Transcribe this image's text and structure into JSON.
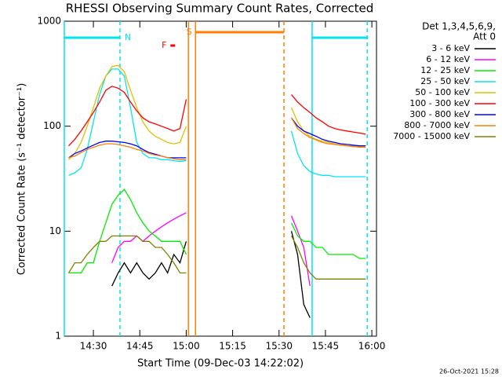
{
  "chart_data": {
    "type": "line",
    "title": "RHESSI Observing Summary Count Rates, Corrected",
    "x_label": "Start Time (09-Dec-03 14:22:02)",
    "y_label": "Corrected Count Rate (s⁻¹ detector⁻¹)",
    "legend_title": [
      "Det 1,3,4,5,6,9,",
      "Att 0"
    ],
    "footer": "26-Oct-2021 15:28",
    "log_y": true,
    "legend": "right",
    "xlim": [
      860.6,
      961.5
    ],
    "ylim": [
      1,
      1000
    ],
    "xticks": [
      {
        "value": 870,
        "label": "14:30"
      },
      {
        "value": 885,
        "label": "14:45"
      },
      {
        "value": 900,
        "label": "15:00"
      },
      {
        "value": 915,
        "label": "15:15"
      },
      {
        "value": 930,
        "label": "15:30"
      },
      {
        "value": 945,
        "label": "15:45"
      },
      {
        "value": 960,
        "label": "16:00"
      }
    ],
    "yticks": [
      1,
      10,
      100,
      1000
    ],
    "x": [
      862,
      864,
      866,
      868,
      870,
      872,
      874,
      876,
      878,
      880,
      882,
      884,
      886,
      888,
      890,
      892,
      894,
      896,
      898,
      900,
      902,
      904,
      906,
      908,
      910,
      912,
      914,
      916,
      918,
      920,
      922,
      924,
      926,
      928,
      930,
      932,
      934,
      936,
      938,
      940,
      942,
      944,
      946,
      948,
      950,
      952,
      954,
      956,
      958
    ],
    "series": [
      {
        "name": "3 - 6 keV",
        "color": "#000000",
        "values": [
          null,
          null,
          null,
          null,
          null,
          null,
          null,
          3,
          4,
          5,
          4,
          5,
          4,
          3.5,
          4,
          5,
          4,
          6,
          5,
          8,
          null,
          null,
          null,
          null,
          null,
          null,
          null,
          null,
          null,
          null,
          null,
          null,
          null,
          null,
          null,
          null,
          10,
          6,
          2,
          1.5,
          null,
          null,
          null,
          null,
          null,
          null,
          null,
          null,
          null
        ]
      },
      {
        "name": "6 - 12 keV",
        "color": "#ff00ff",
        "values": [
          null,
          null,
          null,
          null,
          null,
          null,
          null,
          5,
          7,
          8,
          8,
          9,
          8,
          9,
          10,
          11,
          12,
          13,
          14,
          15,
          null,
          null,
          null,
          null,
          null,
          null,
          null,
          null,
          null,
          null,
          null,
          null,
          null,
          null,
          null,
          null,
          14,
          10,
          7,
          3,
          null,
          null,
          null,
          null,
          null,
          null,
          null,
          null,
          null
        ]
      },
      {
        "name": "12 - 25 keV",
        "color": "#00ee00",
        "values": [
          4,
          4,
          4,
          5,
          5,
          8,
          12,
          18,
          22,
          25,
          20,
          15,
          12,
          10,
          9,
          8,
          8,
          8,
          8,
          6,
          null,
          null,
          null,
          null,
          null,
          null,
          null,
          null,
          null,
          null,
          null,
          null,
          null,
          null,
          null,
          null,
          12,
          9,
          8,
          8,
          7,
          7,
          6,
          6,
          6,
          6,
          6,
          5.5,
          5.5
        ]
      },
      {
        "name": "25 - 50 keV",
        "color": "#00e5ee",
        "values": [
          34,
          36,
          40,
          60,
          110,
          200,
          300,
          350,
          350,
          300,
          150,
          70,
          55,
          50,
          50,
          48,
          48,
          47,
          46,
          47,
          null,
          null,
          null,
          null,
          null,
          null,
          null,
          null,
          null,
          null,
          null,
          null,
          null,
          null,
          null,
          null,
          90,
          55,
          42,
          37,
          35,
          34,
          34,
          33,
          33,
          33,
          33,
          33,
          33
        ]
      },
      {
        "name": "50 - 100 keV",
        "color": "#e0c000",
        "values": [
          48,
          55,
          70,
          100,
          150,
          230,
          300,
          370,
          380,
          330,
          220,
          150,
          110,
          90,
          80,
          75,
          70,
          68,
          70,
          100,
          null,
          null,
          null,
          null,
          null,
          null,
          null,
          null,
          null,
          null,
          null,
          null,
          null,
          null,
          null,
          null,
          150,
          110,
          90,
          80,
          75,
          72,
          70,
          68,
          66,
          65,
          65,
          64,
          63
        ]
      },
      {
        "name": "100 - 300 keV",
        "color": "#ff0000",
        "values": [
          65,
          75,
          90,
          110,
          135,
          170,
          220,
          240,
          230,
          210,
          170,
          140,
          120,
          110,
          105,
          100,
          95,
          90,
          95,
          180,
          null,
          null,
          null,
          null,
          null,
          null,
          null,
          null,
          null,
          null,
          null,
          null,
          null,
          null,
          null,
          null,
          200,
          170,
          150,
          135,
          120,
          110,
          100,
          95,
          92,
          90,
          88,
          86,
          84
        ]
      },
      {
        "name": "300 - 800 keV",
        "color": "#0000ff",
        "values": [
          50,
          55,
          58,
          62,
          66,
          70,
          72,
          72,
          71,
          70,
          68,
          65,
          60,
          56,
          54,
          52,
          50,
          50,
          50,
          50,
          null,
          null,
          null,
          null,
          null,
          null,
          null,
          null,
          null,
          null,
          null,
          null,
          null,
          null,
          null,
          null,
          120,
          100,
          90,
          85,
          80,
          75,
          72,
          70,
          68,
          67,
          66,
          65,
          65
        ]
      },
      {
        "name": "800 - 7000 keV",
        "color": "#ff8000",
        "values": [
          50,
          52,
          56,
          60,
          63,
          66,
          68,
          68,
          67,
          65,
          63,
          60,
          58,
          55,
          53,
          52,
          50,
          49,
          48,
          48,
          null,
          null,
          null,
          null,
          null,
          null,
          null,
          null,
          null,
          null,
          null,
          null,
          null,
          null,
          null,
          null,
          120,
          95,
          85,
          78,
          74,
          70,
          68,
          67,
          66,
          65,
          64,
          63,
          63
        ]
      },
      {
        "name": "7000 - 15000 keV",
        "color": "#808000",
        "values": [
          4,
          5,
          5,
          6,
          7,
          8,
          8,
          9,
          9,
          9,
          9,
          9,
          8,
          8,
          7,
          7,
          6,
          5,
          4,
          4,
          null,
          null,
          null,
          null,
          null,
          null,
          null,
          null,
          null,
          null,
          null,
          null,
          null,
          null,
          null,
          null,
          9,
          7,
          5,
          4,
          3.5,
          3.5,
          3.5,
          3.5,
          3.5,
          3.5,
          3.5,
          3.5,
          3.5
        ]
      }
    ],
    "vlines": [
      {
        "x": 860.6,
        "color": "#00e5ee",
        "dashed": false
      },
      {
        "x": 878.6,
        "color": "#00e5ee",
        "dashed": true
      },
      {
        "x": 940.7,
        "color": "#00e5ee",
        "dashed": false
      },
      {
        "x": 958.5,
        "color": "#00e5ee",
        "dashed": true
      },
      {
        "x": 900.7,
        "color": "#ff8000",
        "dashed": false
      },
      {
        "x": 903.0,
        "color": "#ff8000",
        "dashed": false
      },
      {
        "x": 931.6,
        "color": "#ff8000",
        "dashed": true
      }
    ],
    "flags": [
      {
        "label": "N",
        "color": "#00e5ee",
        "spans": [
          [
            860.6,
            878.6
          ],
          [
            940.7,
            958.5
          ]
        ]
      },
      {
        "label": "S",
        "color": "#ff8000",
        "spans": [
          [
            903.0,
            931.6
          ]
        ]
      },
      {
        "label": "F",
        "color": "#ff0000",
        "spans": [
          [
            894.9,
            896.4
          ]
        ]
      }
    ]
  }
}
